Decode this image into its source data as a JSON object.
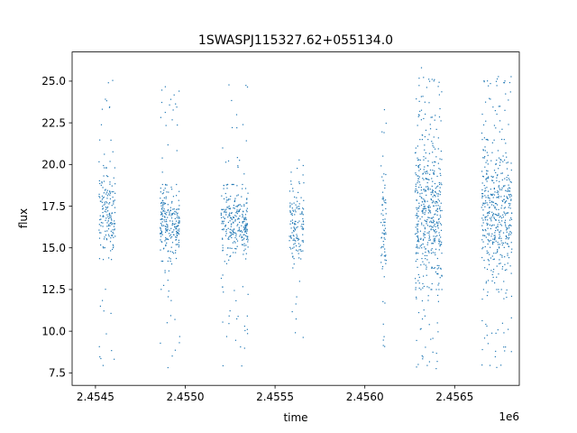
{
  "chart_data": {
    "type": "scatter",
    "title": "1SWASPJ115327.62+055134.0",
    "xlabel": "time",
    "ylabel": "flux",
    "x_offset_label": "1e6",
    "xlim": [
      2.45437,
      2.45686
    ],
    "ylim": [
      6.75,
      26.75
    ],
    "x_ticks": [
      2.4545,
      2.455,
      2.4555,
      2.456,
      2.4565
    ],
    "x_tick_labels": [
      "2.4545",
      "2.4550",
      "2.4555",
      "2.4560",
      "2.4565"
    ],
    "y_ticks": [
      7.5,
      10.0,
      12.5,
      15.0,
      17.5,
      20.0,
      22.5,
      25.0
    ],
    "y_tick_labels": [
      "7.5",
      "10.0",
      "12.5",
      "15.0",
      "17.5",
      "20.0",
      "22.5",
      "25.0"
    ],
    "grid": false,
    "legend": "none",
    "marker_color": "#1f77b4",
    "clusters": [
      {
        "x_range": [
          2.45452,
          2.45461
        ],
        "core": [
          14.3,
          19.8
        ],
        "extent": [
          7.8,
          25.3
        ],
        "density": 0.6
      },
      {
        "x_range": [
          2.45486,
          2.45497
        ],
        "core": [
          14.2,
          18.8
        ],
        "extent": [
          7.8,
          25.3
        ],
        "density": 0.85
      },
      {
        "x_range": [
          2.4552,
          2.45535
        ],
        "core": [
          14.2,
          18.8
        ],
        "extent": [
          7.9,
          24.8
        ],
        "density": 1.0
      },
      {
        "x_range": [
          2.45558,
          2.45566
        ],
        "core": [
          14.2,
          18.4
        ],
        "extent": [
          8.0,
          20.5
        ],
        "density": 0.45
      },
      {
        "x_range": [
          2.45609,
          2.45612
        ],
        "core": [
          13.0,
          20.5
        ],
        "extent": [
          9.0,
          24.2
        ],
        "density": 0.25
      },
      {
        "x_range": [
          2.45628,
          2.45643
        ],
        "core": [
          12.5,
          21.5
        ],
        "extent": [
          7.7,
          25.9
        ],
        "density": 1.7
      },
      {
        "x_range": [
          2.45665,
          2.45682
        ],
        "core": [
          12.5,
          21.5
        ],
        "extent": [
          7.8,
          25.5
        ],
        "density": 1.6
      }
    ]
  }
}
